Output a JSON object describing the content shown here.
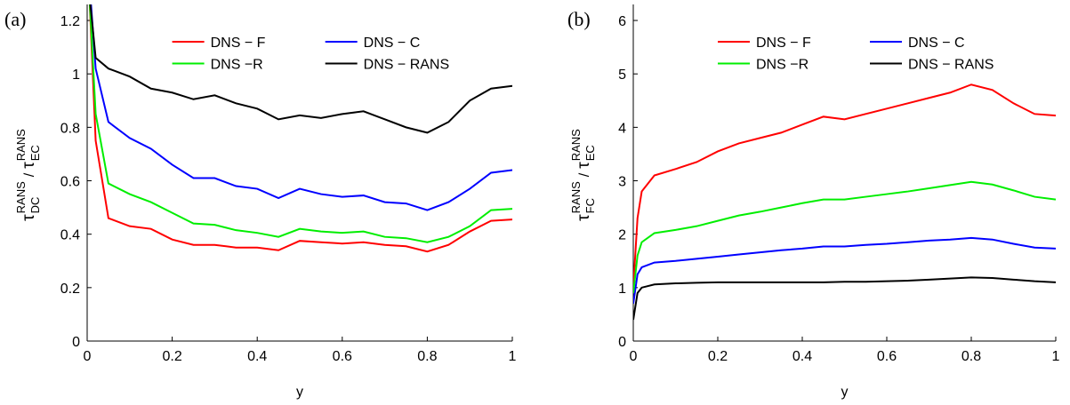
{
  "chart_data": [
    {
      "type": "line",
      "panel_label": "(a)",
      "xlabel": "y",
      "ylabel": {
        "numerator": {
          "base": "τ",
          "sub": "DC",
          "sup": "RANS"
        },
        "separator": "/",
        "denominator": {
          "base": "τ",
          "sub": "EC",
          "sup": "RANS"
        }
      },
      "x": [
        0.005,
        0.02,
        0.05,
        0.1,
        0.15,
        0.2,
        0.25,
        0.3,
        0.35,
        0.4,
        0.45,
        0.5,
        0.55,
        0.6,
        0.65,
        0.7,
        0.75,
        0.8,
        0.85,
        0.9,
        0.95,
        1.0
      ],
      "series": [
        {
          "name": "DNS − F",
          "color": "#ff0000",
          "values": [
            1.3,
            0.75,
            0.46,
            0.43,
            0.42,
            0.38,
            0.36,
            0.36,
            0.35,
            0.35,
            0.34,
            0.375,
            0.37,
            0.365,
            0.37,
            0.36,
            0.355,
            0.335,
            0.36,
            0.41,
            0.45,
            0.455
          ]
        },
        {
          "name": "DNS − C",
          "color": "#0000ff",
          "values": [
            1.35,
            1.02,
            0.82,
            0.76,
            0.72,
            0.66,
            0.61,
            0.61,
            0.58,
            0.57,
            0.535,
            0.57,
            0.55,
            0.54,
            0.545,
            0.52,
            0.515,
            0.49,
            0.52,
            0.57,
            0.63,
            0.64
          ]
        },
        {
          "name": "DNS −R",
          "color": "#00ee00",
          "values": [
            1.3,
            0.85,
            0.59,
            0.55,
            0.52,
            0.48,
            0.44,
            0.435,
            0.415,
            0.405,
            0.39,
            0.42,
            0.41,
            0.405,
            0.41,
            0.39,
            0.385,
            0.37,
            0.39,
            0.43,
            0.49,
            0.495
          ]
        },
        {
          "name": "DNS − RANS",
          "color": "#000000",
          "values": [
            1.3,
            1.06,
            1.02,
            0.99,
            0.945,
            0.93,
            0.905,
            0.92,
            0.89,
            0.87,
            0.83,
            0.845,
            0.835,
            0.85,
            0.86,
            0.83,
            0.8,
            0.78,
            0.82,
            0.9,
            0.945,
            0.955
          ]
        }
      ],
      "xlim": [
        0,
        1
      ],
      "xticks": [
        0,
        0.2,
        0.4,
        0.6,
        0.8,
        1
      ],
      "ylim": [
        0,
        1.26
      ],
      "yticks": [
        0,
        0.2,
        0.4,
        0.6,
        0.8,
        1,
        1.2
      ],
      "legend": "upper center"
    },
    {
      "type": "line",
      "panel_label": "(b)",
      "xlabel": "y",
      "ylabel": {
        "numerator": {
          "base": "τ",
          "sub": "FC",
          "sup": "RANS"
        },
        "separator": "/",
        "denominator": {
          "base": "τ",
          "sub": "EC",
          "sup": "RANS"
        }
      },
      "x": [
        0,
        0.01,
        0.02,
        0.05,
        0.1,
        0.15,
        0.2,
        0.25,
        0.3,
        0.35,
        0.4,
        0.45,
        0.5,
        0.55,
        0.6,
        0.65,
        0.7,
        0.75,
        0.8,
        0.85,
        0.9,
        0.95,
        1.0
      ],
      "series": [
        {
          "name": "DNS − F",
          "color": "#ff0000",
          "values": [
            1.0,
            2.3,
            2.8,
            3.1,
            3.22,
            3.35,
            3.55,
            3.7,
            3.8,
            3.9,
            4.05,
            4.2,
            4.15,
            4.25,
            4.35,
            4.45,
            4.55,
            4.65,
            4.8,
            4.7,
            4.45,
            4.25,
            4.22
          ]
        },
        {
          "name": "DNS − C",
          "color": "#0000ff",
          "values": [
            0.7,
            1.25,
            1.38,
            1.47,
            1.5,
            1.54,
            1.58,
            1.62,
            1.66,
            1.7,
            1.73,
            1.77,
            1.77,
            1.8,
            1.82,
            1.85,
            1.88,
            1.9,
            1.93,
            1.9,
            1.82,
            1.75,
            1.73
          ]
        },
        {
          "name": "DNS −R",
          "color": "#00ee00",
          "values": [
            0.9,
            1.6,
            1.85,
            2.02,
            2.08,
            2.15,
            2.25,
            2.35,
            2.42,
            2.5,
            2.58,
            2.65,
            2.65,
            2.7,
            2.75,
            2.8,
            2.86,
            2.92,
            2.98,
            2.93,
            2.82,
            2.7,
            2.65
          ]
        },
        {
          "name": "DNS − RANS",
          "color": "#000000",
          "values": [
            0.4,
            0.9,
            1.0,
            1.06,
            1.08,
            1.09,
            1.1,
            1.1,
            1.1,
            1.1,
            1.1,
            1.1,
            1.11,
            1.11,
            1.12,
            1.13,
            1.15,
            1.17,
            1.19,
            1.18,
            1.15,
            1.12,
            1.1
          ]
        }
      ],
      "xlim": [
        0,
        1
      ],
      "xticks": [
        0,
        0.2,
        0.4,
        0.6,
        0.8,
        1
      ],
      "ylim": [
        0,
        6.3
      ],
      "yticks": [
        0,
        1,
        2,
        3,
        4,
        5,
        6
      ],
      "legend": "upper center"
    }
  ]
}
